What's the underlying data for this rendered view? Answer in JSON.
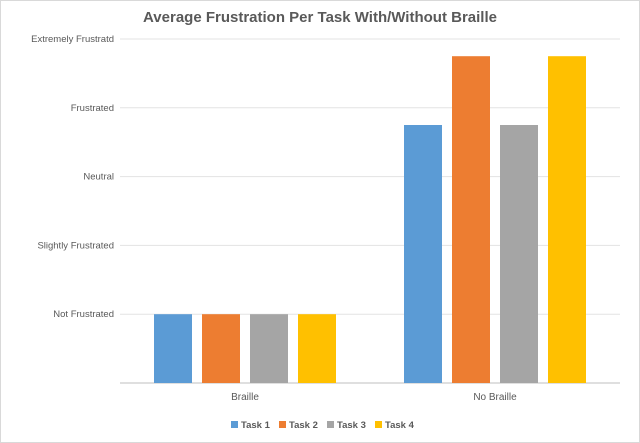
{
  "chart_data": {
    "type": "bar",
    "title": "Average Frustration Per Task With/Without Braille",
    "categories": [
      "Braille",
      "No Braille"
    ],
    "y_tick_labels": [
      "Not Frustrated",
      "Slightly Frustrated",
      "Neutral",
      "Frustrated",
      "Extremely Frustratd"
    ],
    "ylim": [
      0,
      5
    ],
    "grid": true,
    "legend_position": "bottom",
    "series": [
      {
        "name": "Task 1",
        "color": "#5B9BD5",
        "values": [
          1,
          3.75
        ]
      },
      {
        "name": "Task 2",
        "color": "#ED7D31",
        "values": [
          1,
          4.75
        ]
      },
      {
        "name": "Task 3",
        "color": "#A5A5A5",
        "values": [
          1,
          3.75
        ]
      },
      {
        "name": "Task 4",
        "color": "#FFC000",
        "values": [
          1,
          4.75
        ]
      }
    ]
  }
}
